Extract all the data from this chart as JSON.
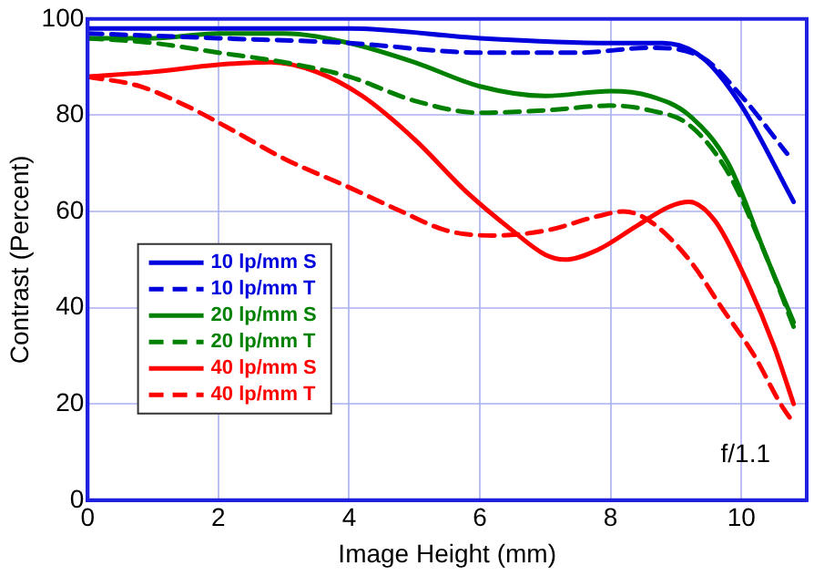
{
  "chart_data": {
    "type": "line",
    "xlabel": "Image Height (mm)",
    "ylabel": "Contrast (Percent)",
    "xlim": [
      0,
      11
    ],
    "xticks": [
      0,
      2,
      4,
      6,
      8,
      10
    ],
    "ylim": [
      0,
      100
    ],
    "yticks": [
      0,
      20,
      40,
      60,
      80,
      100
    ],
    "grid": true,
    "legend": "bottom left",
    "marker": "none",
    "annotations": [
      "f/1.1"
    ],
    "series": [
      {
        "name": "10 lp/mm S",
        "color": "#0000dd",
        "line_style": "solid",
        "x": [
          0,
          2,
          4,
          6,
          8,
          8.8,
          9.4,
          10,
          10.8
        ],
        "values": [
          98,
          98,
          98,
          96,
          95,
          95,
          92,
          82,
          62
        ]
      },
      {
        "name": "10 lp/mm T",
        "color": "#0000dd",
        "line_style": "dashed",
        "x": [
          0,
          2,
          4,
          6,
          7.5,
          8.6,
          9.4,
          10,
          10.7
        ],
        "values": [
          97,
          96,
          95,
          93,
          93,
          94,
          92,
          84,
          72
        ]
      },
      {
        "name": "20 lp/mm S",
        "color": "#008000",
        "line_style": "solid",
        "x": [
          0,
          1,
          2,
          3,
          4,
          5,
          6,
          7,
          8,
          8.6,
          9.2,
          9.8,
          10.4,
          10.8
        ],
        "values": [
          96,
          96,
          97,
          97,
          95,
          91,
          86,
          84,
          85,
          84,
          80,
          70,
          50,
          37
        ]
      },
      {
        "name": "20 lp/mm T",
        "color": "#008000",
        "line_style": "dashed",
        "x": [
          0,
          1,
          2,
          3,
          4,
          5,
          6,
          7,
          8,
          8.6,
          9.2,
          9.8,
          10.4,
          10.8
        ],
        "values": [
          96,
          95,
          93,
          91,
          88,
          83,
          80.5,
          81,
          82,
          81,
          78,
          68,
          50,
          36
        ]
      },
      {
        "name": "40 lp/mm S",
        "color": "#ff0000",
        "line_style": "solid",
        "x": [
          0,
          1,
          2,
          2.8,
          3.5,
          4.2,
          5,
          5.8,
          6.5,
          7,
          7.3,
          7.8,
          8.4,
          8.9,
          9.2,
          9.6,
          10.1,
          10.5,
          10.8
        ],
        "values": [
          88,
          89,
          90.5,
          91,
          89,
          84,
          75,
          64,
          56,
          51,
          50,
          52,
          57,
          61,
          62,
          58,
          45,
          32,
          20
        ]
      },
      {
        "name": "40 lp/mm T",
        "color": "#ff0000",
        "line_style": "dashed",
        "x": [
          0,
          0.8,
          1.5,
          2.2,
          3,
          4,
          4.8,
          5.5,
          6.2,
          7,
          7.8,
          8.2,
          8.6,
          9.2,
          9.7,
          10.2,
          10.6,
          10.8
        ],
        "values": [
          88,
          86,
          82,
          77,
          71,
          65,
          60,
          56,
          55,
          56,
          59,
          60,
          58,
          50,
          40,
          30,
          20,
          16
        ]
      }
    ]
  }
}
